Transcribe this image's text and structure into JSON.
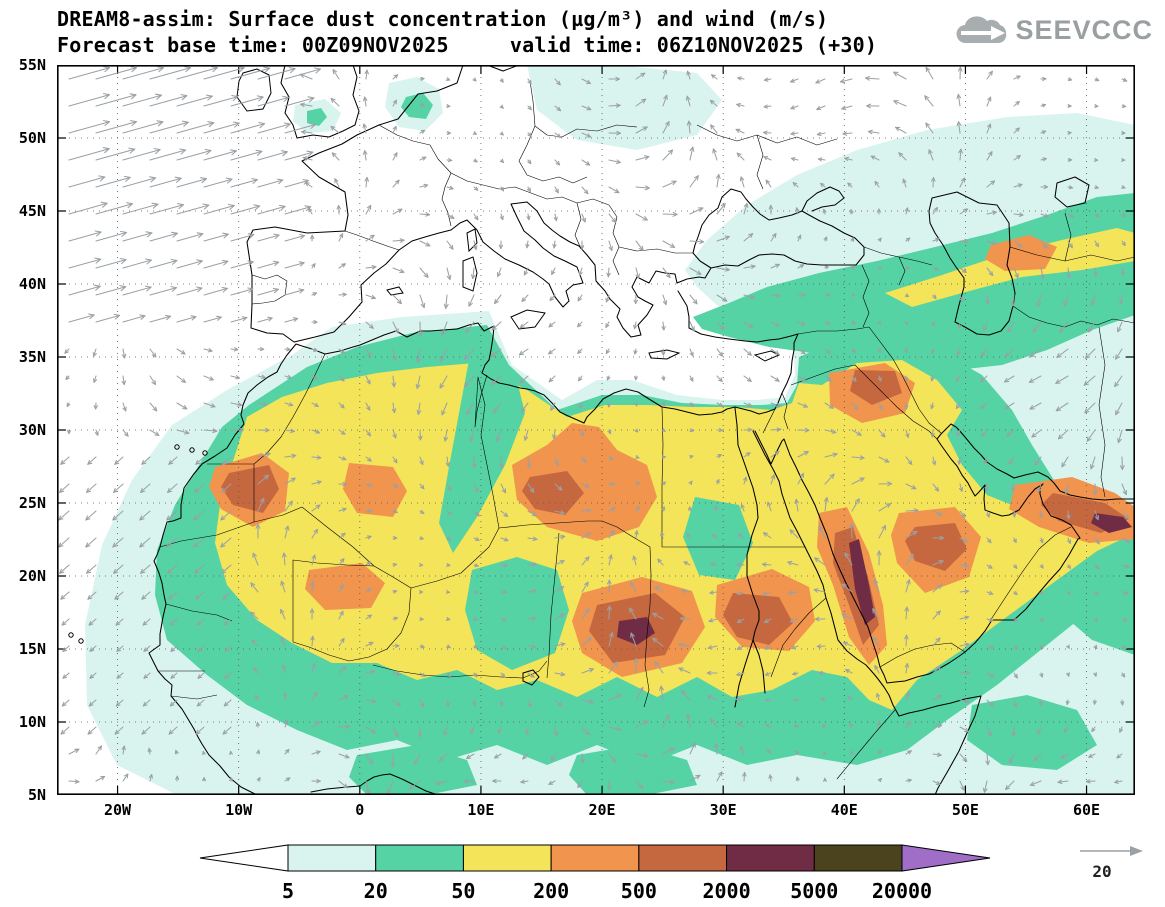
{
  "header": {
    "title_line1": "DREAM8-assim: Surface dust concentration (µg/m³) and wind (m/s)",
    "title_line2": "Forecast base time: 00Z09NOV2025     valid time: 06Z10NOV2025 (+30)"
  },
  "logo": {
    "text": "SEEVCCC",
    "color": "#9aa0a2"
  },
  "chart_data": {
    "type": "heatmap",
    "title": "DREAM8-assim: Surface dust concentration (µg/m³) and wind (m/s)",
    "variable": "surface dust concentration",
    "units": "µg/m³",
    "wind_units": "m/s",
    "forecast_base_time": "00Z09NOV2025",
    "valid_time": "06Z10NOV2025",
    "forecast_hour": "+30",
    "x_axis": {
      "label": "longitude",
      "ticks": [
        "20W",
        "10W",
        "0",
        "10E",
        "20E",
        "30E",
        "40E",
        "50E",
        "60E"
      ],
      "tick_deg": [
        -20,
        -10,
        0,
        10,
        20,
        30,
        40,
        50,
        60
      ],
      "range_deg": [
        -25,
        64
      ]
    },
    "y_axis": {
      "label": "latitude",
      "ticks": [
        "55N",
        "50N",
        "45N",
        "40N",
        "35N",
        "30N",
        "25N",
        "20N",
        "15N",
        "10N",
        "5N"
      ],
      "range_deg": [
        5,
        55
      ]
    },
    "colorbar": {
      "orientation": "horizontal",
      "levels": [
        5,
        20,
        50,
        200,
        500,
        2000,
        5000,
        20000
      ],
      "labels": [
        "5",
        "20",
        "50",
        "200",
        "500",
        "2000",
        "5000",
        "20000"
      ],
      "colors": [
        "#ffffff",
        "#d9f4ee",
        "#55d3a5",
        "#f3e45a",
        "#f0944e",
        "#c56840",
        "#702b45",
        "#4a431e",
        "#a06ec6"
      ]
    },
    "wind_reference": {
      "value": 20,
      "label": "20"
    },
    "wind_color": "#9aa1a6",
    "regions_note": "Highest dust (500-5000+ µg/m³) over W Sahara, C Algeria, Libya, Chad/Sudan, Saudi Red Sea coast, Iraq and Oman/Persian Gulf coast; 50-200 across the Sahara and Arabian Peninsula; 5-50 over adjacent Atlantic, Mediterranean coast, Anatolia, Caspian region and Arabian Sea; strong westerly wind vectors over the NE Atlantic."
  }
}
